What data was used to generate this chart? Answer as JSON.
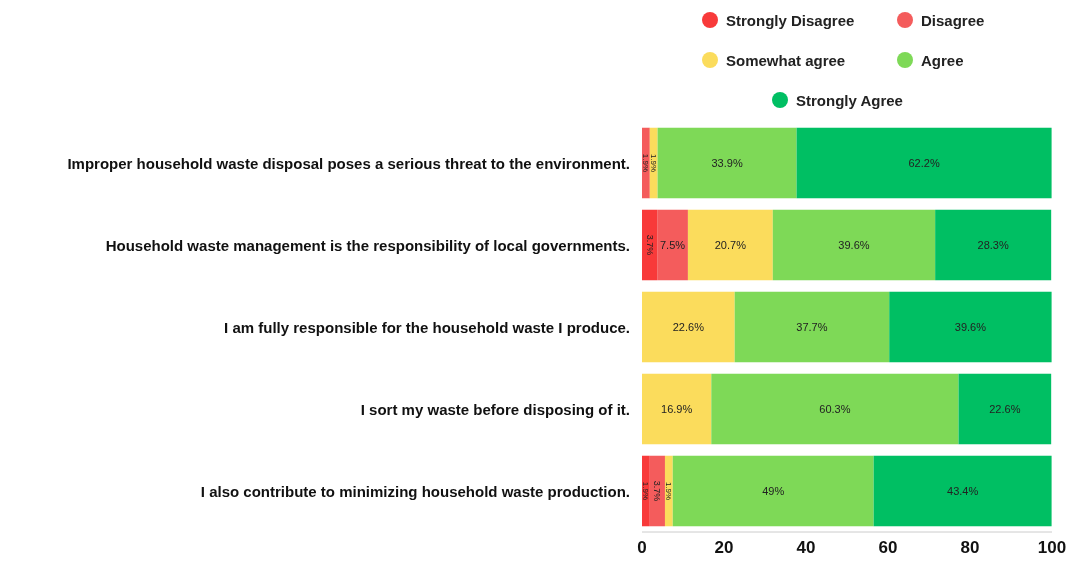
{
  "chart_data": {
    "type": "bar",
    "orientation": "horizontal",
    "stacked": true,
    "legend": "top right",
    "categories": [
      "Improper household waste disposal poses a serious threat to the environment.",
      "Household waste management is the responsibility of local governments.",
      "I am fully responsible for the household waste I produce.",
      "I sort my waste before disposing of it.",
      "I also contribute to minimizing household waste production."
    ],
    "series": [
      {
        "name": "Strongly Disagree",
        "color": "#f83a3a",
        "values": [
          null,
          3.7,
          null,
          null,
          1.9
        ],
        "value_labels": [
          null,
          "3.7%",
          null,
          null,
          "1.9%"
        ]
      },
      {
        "name": "Disagree",
        "color": "#f45c5c",
        "values": [
          1.9,
          7.5,
          null,
          null,
          3.7
        ],
        "value_labels": [
          "1.9%",
          "7.5%",
          null,
          null,
          "3.7%"
        ]
      },
      {
        "name": "Somewhat agree",
        "color": "#fbdc5c",
        "values": [
          1.9,
          20.7,
          22.6,
          16.9,
          1.9
        ],
        "value_labels": [
          "1.9%",
          "20.7%",
          "22.6%",
          "16.9%",
          "1.9%"
        ]
      },
      {
        "name": "Agree",
        "color": "#7ed957",
        "values": [
          33.9,
          39.6,
          37.7,
          60.3,
          49
        ],
        "value_labels": [
          "33.9%",
          "39.6%",
          "37.7%",
          "60.3%",
          "49%"
        ]
      },
      {
        "name": "Strongly Agree",
        "color": "#00bf63",
        "values": [
          62.2,
          28.3,
          39.6,
          22.6,
          43.4
        ],
        "value_labels": [
          "62.2%",
          "28.3%",
          "39.6%",
          "22.6%",
          "43.4%"
        ]
      }
    ],
    "xlim": [
      0,
      100
    ],
    "xticks": [
      0,
      20,
      40,
      60,
      80,
      100
    ]
  }
}
